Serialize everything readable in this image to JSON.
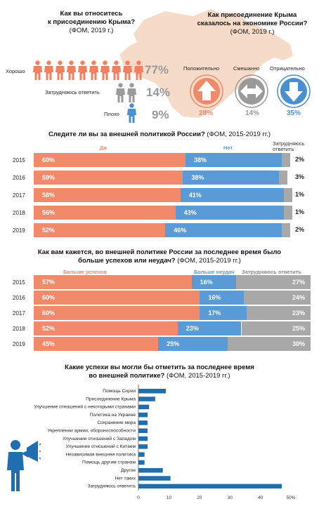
{
  "q1": {
    "title_line1": "Как вы относитесь",
    "title_line2": "к присоединению Крыма?",
    "source": "(ФОМ, 2019 г.)",
    "rows": [
      {
        "label": "Хорошо",
        "value": "77%",
        "people": 10,
        "color": "#f08060"
      },
      {
        "label": "Затрудняюсь ответить",
        "value": "14%",
        "people": 2,
        "color": "#9a9a9a"
      },
      {
        "label": "Плохо",
        "value": "9%",
        "people": 1,
        "color": "#4a90d0"
      }
    ]
  },
  "q2": {
    "title_line1": "Как присоединение Крыма",
    "title_line2": "сказалось на экономике России?",
    "source": "(ФОМ, 2019 г.)",
    "items": [
      {
        "label": "Положительно",
        "value": "28%",
        "color": "#f08060"
      },
      {
        "label": "Смешанно",
        "value": "14%",
        "color": "#9a9a9a"
      },
      {
        "label": "Отрицательно",
        "value": "35%",
        "color": "#4a90d0"
      }
    ]
  },
  "chart_data": [
    {
      "type": "bar",
      "title": "Следите ли вы за внешней политикой России?",
      "source": "(ФОМ, 2015-2019 гг.)",
      "stacked": true,
      "legend": [
        "Да",
        "Нет",
        "Затрудняюсь ответить"
      ],
      "categories": [
        "2015",
        "2016",
        "2017",
        "2018",
        "2019"
      ],
      "series": [
        {
          "name": "Да",
          "values": [
            60,
            59,
            58,
            56,
            52
          ],
          "color": "#f08a6a"
        },
        {
          "name": "Нет",
          "values": [
            38,
            38,
            41,
            43,
            46
          ],
          "color": "#5a9ad6"
        },
        {
          "name": "Затрудняюсь ответить",
          "values": [
            2,
            3,
            1,
            1,
            2
          ],
          "color": "#a8a8a8"
        }
      ]
    },
    {
      "type": "bar",
      "title_line1": "Как вам кажется, во внешней политике России за последнее время было",
      "title_line2": "больше успехов или неудач?",
      "source": "(ФОМ, 2015-2019 гг.)",
      "stacked": true,
      "legend": [
        "Больше успехов",
        "Больше неудач",
        "Затрудняюсь ответить"
      ],
      "categories": [
        "2015",
        "2016",
        "2017",
        "2018",
        "2019"
      ],
      "series": [
        {
          "name": "Больше успехов",
          "values": [
            57,
            60,
            60,
            52,
            45
          ],
          "color": "#f08a6a"
        },
        {
          "name": "Больше неудач",
          "values": [
            16,
            16,
            17,
            23,
            25
          ],
          "color": "#5a9ad6"
        },
        {
          "name": "Затрудняюсь ответить",
          "values": [
            27,
            24,
            23,
            25,
            30
          ],
          "color": "#a8a8a8"
        }
      ]
    },
    {
      "type": "bar",
      "orientation": "horizontal",
      "title_line1": "Какие успехи вы могли бы отметить за последнее время",
      "title_line2": "во внешней политике?",
      "source": "(ФОМ, 2015-2019 гг.)",
      "categories": [
        "Помощь Сирии",
        "Присоединение Крыма",
        "Улучшение отношений с некоторыми странами",
        "Политика на Украине",
        "Сохранение мира",
        "Укреплении армии, обороноспособности",
        "Улучшение отношений с Западом",
        "Улучшение отношений с Китаем",
        "Независимая внешняя политика",
        "Помощь другим странам",
        "Другое",
        "Нет таких",
        "Затрудняюсь ответить"
      ],
      "values": [
        9,
        5.5,
        3.5,
        3,
        3,
        3,
        3,
        3,
        2,
        2,
        8,
        10.5,
        47
      ],
      "xlim": [
        0,
        50
      ],
      "xticks": [
        "0",
        "10",
        "20",
        "30",
        "40",
        "50%"
      ],
      "color": "#1f6fb0"
    }
  ]
}
